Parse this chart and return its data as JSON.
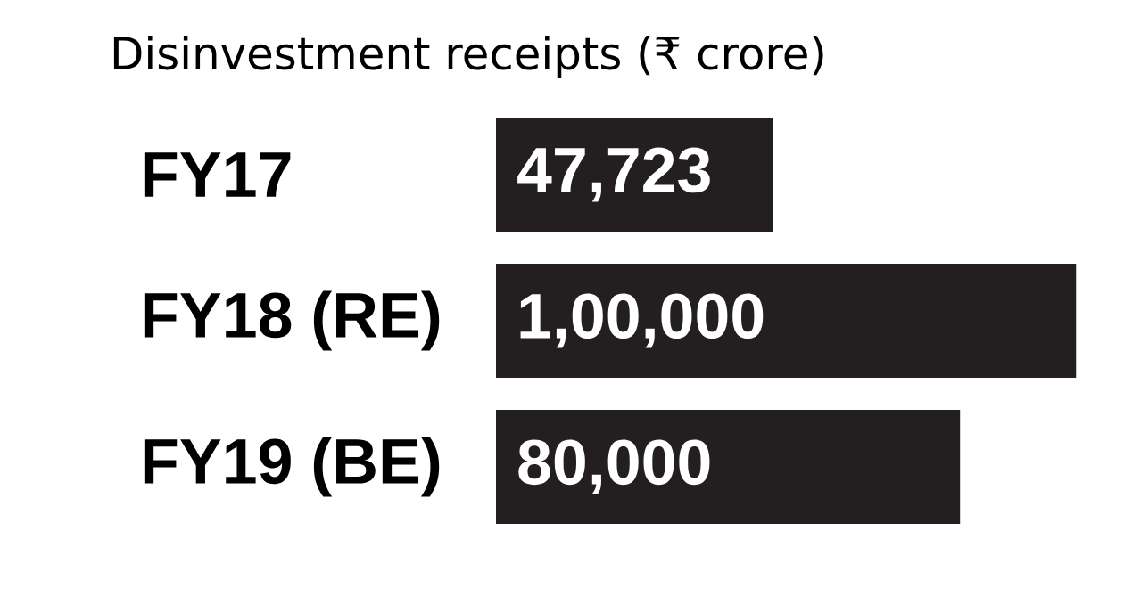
{
  "chart_data": {
    "type": "bar",
    "orientation": "horizontal",
    "title": "Disinvestment receipts (₹ crore)",
    "categories": [
      "FY17",
      "FY18 (RE)",
      "FY19 (BE)"
    ],
    "values": [
      47723,
      100000,
      80000
    ],
    "value_labels": [
      "47,723",
      "1,00,000",
      "80,000"
    ],
    "color": "#231f20"
  }
}
